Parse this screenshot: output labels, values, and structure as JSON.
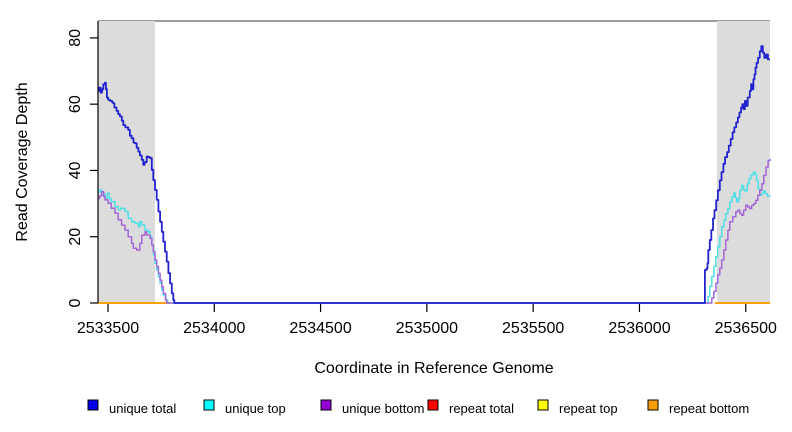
{
  "chart_data": {
    "type": "line",
    "title": "",
    "xlabel": "Coordinate in Reference Genome",
    "ylabel": "Read Coverage Depth",
    "x_ticks": [
      2533500,
      2534000,
      2534500,
      2535000,
      2535500,
      2536000,
      2536500
    ],
    "y_ticks": [
      0,
      20,
      40,
      60,
      80
    ],
    "x_domain": [
      2533453,
      2536614
    ],
    "y_domain": [
      0,
      85.1
    ],
    "grid": false,
    "legend_position": "bottom",
    "colors": {
      "repeat_region_fill": "#DCDCDC",
      "plot_border": "#7D7D7D",
      "axis": "#000000",
      "background": "#FFFFFF"
    },
    "repeat_regions": [
      {
        "x1": 2533453,
        "x2": 2533721
      },
      {
        "x1": 2536364,
        "x2": 2536614
      }
    ],
    "series": [
      {
        "name": "repeat total",
        "color": "#E00000",
        "width": 1.5,
        "segments": [
          [
            [
              2533453,
              0
            ],
            [
              2533788,
              0
            ]
          ],
          [
            [
              2536355,
              0
            ],
            [
              2536614,
              0
            ]
          ]
        ]
      },
      {
        "name": "repeat top",
        "color": "#FFFF00",
        "width": 1.5,
        "segments": [
          [
            [
              2533453,
              0
            ],
            [
              2533788,
              0
            ]
          ],
          [
            [
              2536355,
              0
            ],
            [
              2536614,
              0
            ]
          ]
        ]
      },
      {
        "name": "repeat bottom",
        "color": "#FF9E00",
        "width": 1.8,
        "segments": [
          [
            [
              2533453,
              0
            ],
            [
              2533788,
              0
            ]
          ],
          [
            [
              2536355,
              0
            ],
            [
              2536614,
              0
            ]
          ]
        ]
      },
      {
        "name": "unique top",
        "color": "#4FE0E6",
        "width": 1.5,
        "segments": [
          [
            [
              2533453,
              33.5
            ],
            [
              2533462,
              34.1
            ],
            [
              2533472,
              32.8
            ],
            [
              2533486,
              31.6
            ],
            [
              2533496,
              33.1
            ],
            [
              2533506,
              31.5
            ],
            [
              2533515,
              30.6
            ],
            [
              2533533,
              29.1
            ],
            [
              2533548,
              28.1
            ],
            [
              2533560,
              28.6
            ],
            [
              2533580,
              27.6
            ],
            [
              2533595,
              25.6
            ],
            [
              2533611,
              24.5
            ],
            [
              2533627,
              24.1
            ],
            [
              2533643,
              23
            ],
            [
              2533650,
              24.5
            ],
            [
              2533659,
              23.5
            ],
            [
              2533674,
              22
            ],
            [
              2533690,
              21.5
            ],
            [
              2533698,
              20
            ],
            [
              2533706,
              17.5
            ],
            [
              2533714,
              14.5
            ],
            [
              2533721,
              12
            ],
            [
              2533729,
              10
            ],
            [
              2533737,
              7.9
            ],
            [
              2533745,
              5.9
            ],
            [
              2533753,
              3.9
            ],
            [
              2533760,
              2.4
            ],
            [
              2533772,
              0.8
            ],
            [
              2533781,
              0
            ],
            [
              2536318,
              0
            ],
            [
              2536323,
              2
            ],
            [
              2536331,
              5
            ],
            [
              2536340,
              8
            ],
            [
              2536350,
              11
            ],
            [
              2536359,
              14
            ],
            [
              2536368,
              17
            ],
            [
              2536378,
              20
            ],
            [
              2536387,
              23
            ],
            [
              2536397,
              25
            ],
            [
              2536406,
              27
            ],
            [
              2536416,
              28.5
            ],
            [
              2536425,
              30.5
            ],
            [
              2536435,
              32
            ],
            [
              2536444,
              33.2
            ],
            [
              2536451,
              31.8
            ],
            [
              2536458,
              30.5
            ],
            [
              2536466,
              31.5
            ],
            [
              2536472,
              34
            ],
            [
              2536481,
              35.5
            ],
            [
              2536490,
              34.2
            ],
            [
              2536498,
              33.8
            ],
            [
              2536507,
              36
            ],
            [
              2536515,
              37.5
            ],
            [
              2536524,
              38.6
            ],
            [
              2536536,
              39.5
            ],
            [
              2536545,
              38.8
            ],
            [
              2536551,
              37
            ],
            [
              2536558,
              34.5
            ],
            [
              2536566,
              32.6
            ],
            [
              2536576,
              33
            ],
            [
              2536583,
              33.8
            ],
            [
              2536592,
              33
            ],
            [
              2536601,
              32.3
            ],
            [
              2536614,
              32
            ]
          ]
        ]
      },
      {
        "name": "unique bottom",
        "color": "#A266D6",
        "width": 1.5,
        "segments": [
          [
            [
              2533453,
              31.5
            ],
            [
              2533460,
              32.3
            ],
            [
              2533470,
              33.6
            ],
            [
              2533480,
              32.2
            ],
            [
              2533486,
              31.1
            ],
            [
              2533501,
              30.1
            ],
            [
              2533515,
              28.6
            ],
            [
              2533533,
              27.1
            ],
            [
              2533548,
              25.1
            ],
            [
              2533564,
              23.5
            ],
            [
              2533580,
              22
            ],
            [
              2533595,
              20
            ],
            [
              2533611,
              18
            ],
            [
              2533619,
              16.5
            ],
            [
              2533635,
              16
            ],
            [
              2533650,
              18
            ],
            [
              2533659,
              20.5
            ],
            [
              2533674,
              21.5
            ],
            [
              2533682,
              20.5
            ],
            [
              2533698,
              19.5
            ],
            [
              2533706,
              17.5
            ],
            [
              2533713,
              15.5
            ],
            [
              2533721,
              13
            ],
            [
              2533729,
              11
            ],
            [
              2533737,
              9
            ],
            [
              2533745,
              6.9
            ],
            [
              2533753,
              4.9
            ],
            [
              2533760,
              2.9
            ],
            [
              2533770,
              1
            ],
            [
              2533776,
              0
            ],
            [
              2536331,
              0
            ],
            [
              2536340,
              1.5
            ],
            [
              2536350,
              3.5
            ],
            [
              2536360,
              6
            ],
            [
              2536368,
              8.5
            ],
            [
              2536378,
              10.5
            ],
            [
              2536387,
              13
            ],
            [
              2536397,
              16
            ],
            [
              2536406,
              19
            ],
            [
              2536416,
              22
            ],
            [
              2536425,
              24.5
            ],
            [
              2536439,
              26
            ],
            [
              2536453,
              27.5
            ],
            [
              2536462,
              28
            ],
            [
              2536472,
              27
            ],
            [
              2536481,
              26.5
            ],
            [
              2536490,
              28
            ],
            [
              2536500,
              29.5
            ],
            [
              2536509,
              29
            ],
            [
              2536519,
              28.5
            ],
            [
              2536528,
              29.5
            ],
            [
              2536538,
              30
            ],
            [
              2536547,
              31
            ],
            [
              2536557,
              32.5
            ],
            [
              2536566,
              34
            ],
            [
              2536576,
              36
            ],
            [
              2536585,
              38.5
            ],
            [
              2536595,
              41
            ],
            [
              2536605,
              43
            ],
            [
              2536614,
              43.5
            ]
          ]
        ]
      },
      {
        "name": "unique total",
        "color": "#2222CE",
        "width": 1.8,
        "segments": [
          [
            [
              2533453,
              64
            ],
            [
              2533458,
              65
            ],
            [
              2533465,
              63.5
            ],
            [
              2533472,
              64.5
            ],
            [
              2533478,
              66
            ],
            [
              2533486,
              66.5
            ],
            [
              2533490,
              64.5
            ],
            [
              2533495,
              62
            ],
            [
              2533501,
              61.3
            ],
            [
              2533510,
              61
            ],
            [
              2533520,
              60.5
            ],
            [
              2533525,
              60.3
            ],
            [
              2533530,
              59
            ],
            [
              2533540,
              58
            ],
            [
              2533548,
              57
            ],
            [
              2533556,
              56.3
            ],
            [
              2533565,
              55
            ],
            [
              2533572,
              53.7
            ],
            [
              2533582,
              53
            ],
            [
              2533595,
              52.2
            ],
            [
              2533603,
              50.5
            ],
            [
              2533611,
              49.7
            ],
            [
              2533620,
              48.4
            ],
            [
              2533627,
              48.2
            ],
            [
              2533635,
              46.8
            ],
            [
              2533643,
              45.7
            ],
            [
              2533650,
              44.5
            ],
            [
              2533659,
              43.2
            ],
            [
              2533666,
              41.7
            ],
            [
              2533672,
              42.5
            ],
            [
              2533682,
              44.2
            ],
            [
              2533690,
              44
            ],
            [
              2533698,
              43.7
            ],
            [
              2533706,
              40.2
            ],
            [
              2533713,
              37.1
            ],
            [
              2533721,
              34.1
            ],
            [
              2533729,
              31.1
            ],
            [
              2533737,
              27.6
            ],
            [
              2533745,
              24.5
            ],
            [
              2533753,
              21.5
            ],
            [
              2533760,
              18.5
            ],
            [
              2533768,
              15.5
            ],
            [
              2533776,
              12.5
            ],
            [
              2533784,
              9
            ],
            [
              2533792,
              5.9
            ],
            [
              2533800,
              2.9
            ],
            [
              2533807,
              0.9
            ],
            [
              2533812,
              0
            ],
            [
              2536308,
              0
            ],
            [
              2536308,
              10
            ],
            [
              2536316,
              10.4
            ],
            [
              2536320,
              12
            ],
            [
              2536324,
              16
            ],
            [
              2536331,
              19
            ],
            [
              2536338,
              22
            ],
            [
              2536346,
              25.5
            ],
            [
              2536353,
              28
            ],
            [
              2536361,
              31
            ],
            [
              2536369,
              34
            ],
            [
              2536378,
              37
            ],
            [
              2536386,
              39.5
            ],
            [
              2536395,
              42
            ],
            [
              2536403,
              44
            ],
            [
              2536412,
              45.5
            ],
            [
              2536420,
              47.5
            ],
            [
              2536429,
              49.5
            ],
            [
              2536438,
              51.5
            ],
            [
              2536446,
              53
            ],
            [
              2536455,
              54.5
            ],
            [
              2536463,
              56
            ],
            [
              2536470,
              57.5
            ],
            [
              2536478,
              59
            ],
            [
              2536484,
              60
            ],
            [
              2536489,
              58.5
            ],
            [
              2536496,
              61
            ],
            [
              2536501,
              59.5
            ],
            [
              2536509,
              62
            ],
            [
              2536519,
              64
            ],
            [
              2536525,
              66
            ],
            [
              2536529,
              64.5
            ],
            [
              2536536,
              67.5
            ],
            [
              2536541,
              69
            ],
            [
              2536546,
              71
            ],
            [
              2536551,
              72.5
            ],
            [
              2536558,
              74
            ],
            [
              2536566,
              76
            ],
            [
              2536573,
              77.5
            ],
            [
              2536580,
              75.5
            ],
            [
              2536587,
              74
            ],
            [
              2536596,
              75
            ],
            [
              2536604,
              73.5
            ],
            [
              2536614,
              73.5
            ]
          ]
        ]
      }
    ],
    "legend": [
      {
        "label": "unique total",
        "color": "#0000EE"
      },
      {
        "label": "unique top",
        "color": "#00FFFF"
      },
      {
        "label": "unique bottom",
        "color": "#9400D3"
      },
      {
        "label": "repeat total",
        "color": "#FF0000"
      },
      {
        "label": "repeat top",
        "color": "#FFFF00"
      },
      {
        "label": "repeat bottom",
        "color": "#FF9E00"
      }
    ]
  }
}
